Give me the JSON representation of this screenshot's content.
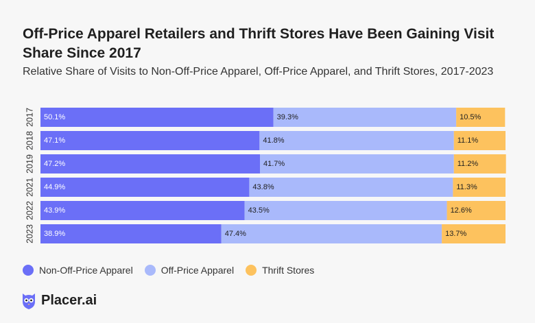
{
  "chart_data": {
    "type": "bar",
    "orientation": "horizontal",
    "stacked": true,
    "title": "Off-Price Apparel Retailers and Thrift Stores Have Been Gaining Visit Share Since 2017",
    "subtitle": "Relative Share of Visits to Non-Off-Price Apparel, Off-Price Apparel, and Thrift Stores, 2017-2023",
    "categories": [
      "2017",
      "2018",
      "2019",
      "2021",
      "2022",
      "2023"
    ],
    "series": [
      {
        "name": "Non-Off-Price Apparel",
        "color": "#6b6ff7",
        "values": [
          50.1,
          47.1,
          47.2,
          44.9,
          43.9,
          38.9
        ],
        "labels": [
          "50.1%",
          "47.1%",
          "47.2%",
          "44.9%",
          "43.9%",
          "38.9%"
        ]
      },
      {
        "name": "Off-Price Apparel",
        "color": "#a9b9fb",
        "values": [
          39.3,
          41.8,
          41.7,
          43.8,
          43.5,
          47.4
        ],
        "labels": [
          "39.3%",
          "41.8%",
          "41.7%",
          "43.8%",
          "43.5%",
          "47.4%"
        ]
      },
      {
        "name": "Thrift Stores",
        "color": "#fdc25e",
        "values": [
          10.5,
          11.1,
          11.2,
          11.3,
          12.6,
          13.7
        ],
        "labels": [
          "10.5%",
          "11.1%",
          "11.2%",
          "11.3%",
          "12.6%",
          "13.7%"
        ]
      }
    ],
    "xlim": [
      0,
      100
    ],
    "grid": false,
    "legend_position": "bottom-left"
  },
  "brand": {
    "name": "Placer.ai",
    "logo_icon": "placer-owl-icon",
    "logo_color": "#6b6ff7"
  }
}
